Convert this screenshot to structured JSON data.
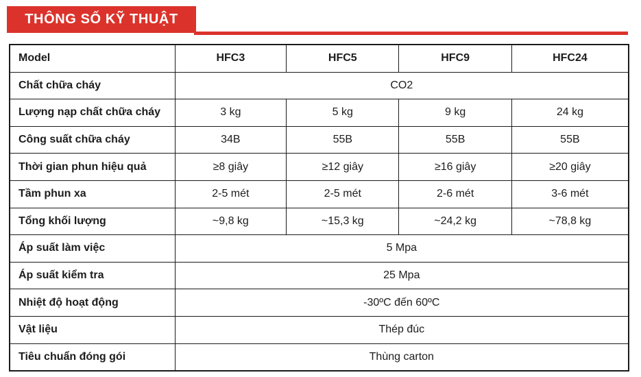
{
  "header": {
    "title": "THÔNG SỐ KỸ THUẬT"
  },
  "table": {
    "header": {
      "label": "Model",
      "columns": [
        "HFC3",
        "HFC5",
        "HFC9",
        "HFC24"
      ]
    },
    "rows": [
      {
        "label": "Chất chữa cháy",
        "span": "CO2"
      },
      {
        "label": "Lượng nạp chất chữa cháy",
        "values": [
          "3 kg",
          "5 kg",
          "9 kg",
          "24 kg"
        ]
      },
      {
        "label": "Công suất chữa cháy",
        "values": [
          "34B",
          "55B",
          "55B",
          "55B"
        ]
      },
      {
        "label": "Thời gian phun hiệu quả",
        "values": [
          "≥8 giây",
          "≥12 giây",
          "≥16 giây",
          "≥20 giây"
        ]
      },
      {
        "label": "Tầm phun xa",
        "values": [
          "2-5 mét",
          "2-5 mét",
          "2-6 mét",
          "3-6 mét"
        ]
      },
      {
        "label": "Tổng khối lượng",
        "values": [
          "~9,8 kg",
          "~15,3 kg",
          "~24,2 kg",
          "~78,8 kg"
        ]
      },
      {
        "label": "Áp suất làm việc",
        "span": "5 Mpa"
      },
      {
        "label": "Áp suất kiểm tra",
        "span": "25 Mpa"
      },
      {
        "label": "Nhiệt độ hoạt động",
        "span": "-30ºC đến 60ºC"
      },
      {
        "label": "Vật liệu",
        "span": "Thép đúc"
      },
      {
        "label": "Tiêu chuẩn đóng gói",
        "span": "Thùng carton"
      }
    ]
  },
  "colors": {
    "accent_red": "#db332b",
    "border": "#1a1a1a",
    "text": "#1c1c1c"
  }
}
